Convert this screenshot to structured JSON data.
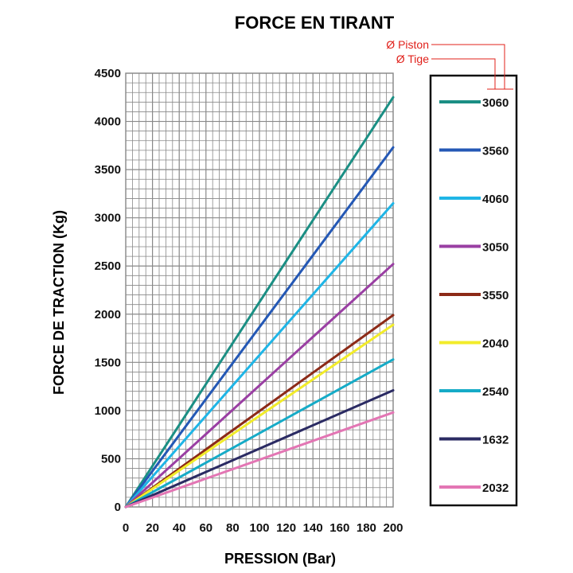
{
  "chart_data": {
    "type": "line",
    "title": "FORCE  EN TIRANT",
    "xlabel": "PRESSION (Bar)",
    "ylabel": "FORCE DE TRACTION (Kg)",
    "xlim": [
      0,
      200
    ],
    "ylim": [
      0,
      4500
    ],
    "xticks": [
      0,
      20,
      40,
      60,
      80,
      100,
      120,
      140,
      160,
      180,
      200
    ],
    "yticks": [
      0,
      500,
      1000,
      1500,
      2000,
      2500,
      3000,
      3500,
      4000,
      4500
    ],
    "grid": true,
    "legend_position": "right",
    "x": [
      0,
      200
    ],
    "series": [
      {
        "name": "3060",
        "values": [
          0,
          4250
        ],
        "color": "#1b8f84"
      },
      {
        "name": "3560",
        "values": [
          0,
          3730
        ],
        "color": "#2458b5"
      },
      {
        "name": "4060",
        "values": [
          0,
          3150
        ],
        "color": "#1fb5e6"
      },
      {
        "name": "3050",
        "values": [
          0,
          2520
        ],
        "color": "#9a3fa3"
      },
      {
        "name": "3550",
        "values": [
          0,
          1990
        ],
        "color": "#8c2a17"
      },
      {
        "name": "2040",
        "values": [
          0,
          1890
        ],
        "color": "#f2ec2a"
      },
      {
        "name": "2540",
        "values": [
          0,
          1530
        ],
        "color": "#16abc7"
      },
      {
        "name": "1632",
        "values": [
          0,
          1210
        ],
        "color": "#2b2b63"
      },
      {
        "name": "2032",
        "values": [
          0,
          980
        ],
        "color": "#e376b4"
      }
    ],
    "legend_annotations": [
      "Ø Piston",
      "Ø Tige"
    ],
    "annotation_color": "#e0201a"
  }
}
